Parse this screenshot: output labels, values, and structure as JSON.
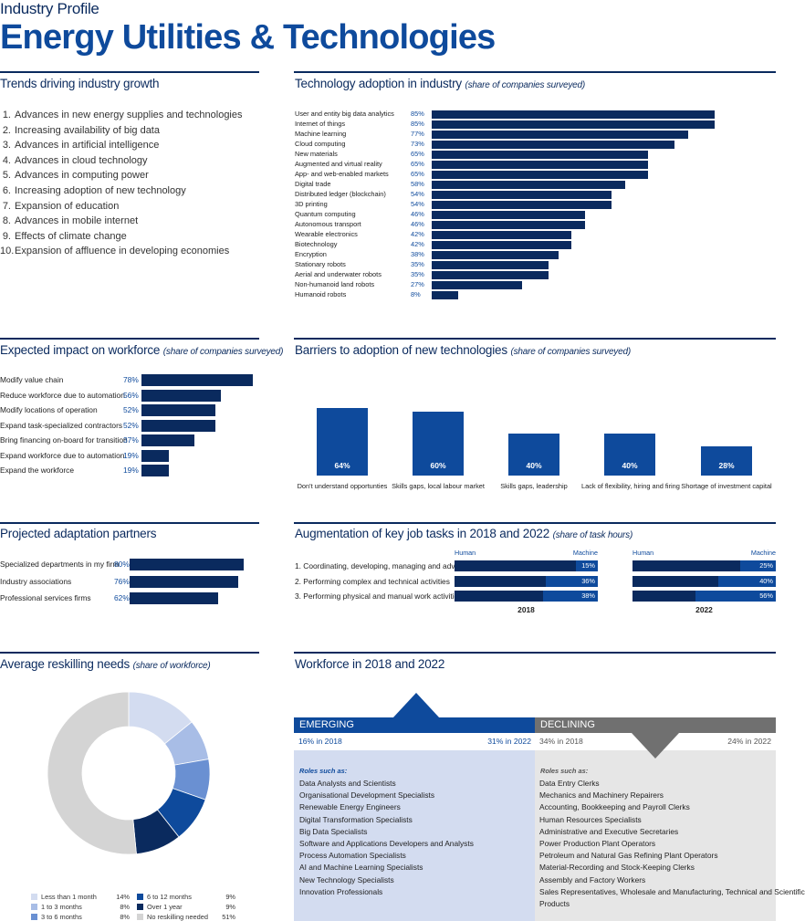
{
  "header": {
    "kicker": "Industry Profile",
    "title": "Energy Utilities & Technologies"
  },
  "trends": {
    "title": "Trends driving industry growth",
    "items": [
      {
        "num": "1.",
        "label": "Advances in new energy supplies and technologies"
      },
      {
        "num": "2.",
        "label": "Increasing availability of big data"
      },
      {
        "num": "3.",
        "label": "Advances in artificial intelligence"
      },
      {
        "num": "4.",
        "label": "Advances in cloud technology"
      },
      {
        "num": "5.",
        "label": "Advances in computing power"
      },
      {
        "num": "6.",
        "label": "Increasing adoption of new technology"
      },
      {
        "num": "7.",
        "label": "Expansion of education"
      },
      {
        "num": "8.",
        "label": "Advances in mobile internet"
      },
      {
        "num": "9.",
        "label": "Effects of climate change"
      },
      {
        "num": "10.",
        "label": "Expansion of affluence in developing economies"
      }
    ]
  },
  "tech_adoption": {
    "title": "Technology adoption in industry",
    "subtitle": "(share of companies surveyed)",
    "items": [
      {
        "label": "User and entity big data analytics",
        "pct": "85%",
        "value": 85
      },
      {
        "label": "Internet of things",
        "pct": "85%",
        "value": 85
      },
      {
        "label": "Machine learning",
        "pct": "77%",
        "value": 77
      },
      {
        "label": "Cloud computing",
        "pct": "73%",
        "value": 73
      },
      {
        "label": "New materials",
        "pct": "65%",
        "value": 65
      },
      {
        "label": "Augmented and virtual reality",
        "pct": "65%",
        "value": 65
      },
      {
        "label": "App- and web-enabled markets",
        "pct": "65%",
        "value": 65
      },
      {
        "label": "Digital trade",
        "pct": "58%",
        "value": 58
      },
      {
        "label": "Distributed ledger (blockchain)",
        "pct": "54%",
        "value": 54
      },
      {
        "label": "3D printing",
        "pct": "54%",
        "value": 54
      },
      {
        "label": "Quantum computing",
        "pct": "46%",
        "value": 46
      },
      {
        "label": "Autonomous transport",
        "pct": "46%",
        "value": 46
      },
      {
        "label": "Wearable electronics",
        "pct": "42%",
        "value": 42
      },
      {
        "label": "Biotechnology",
        "pct": "42%",
        "value": 42
      },
      {
        "label": "Encryption",
        "pct": "38%",
        "value": 38
      },
      {
        "label": "Stationary robots",
        "pct": "35%",
        "value": 35
      },
      {
        "label": "Aerial and underwater robots",
        "pct": "35%",
        "value": 35
      },
      {
        "label": "Non-humanoid land robots",
        "pct": "27%",
        "value": 27
      },
      {
        "label": "Humanoid robots",
        "pct": "8%",
        "value": 8
      }
    ]
  },
  "workforce_impact": {
    "title": "Expected impact on workforce",
    "subtitle": "(share of companies surveyed)",
    "items": [
      {
        "label": "Modify value chain",
        "pct": "78%",
        "value": 78
      },
      {
        "label": "Reduce workforce due to automation",
        "pct": "56%",
        "value": 56
      },
      {
        "label": "Modify locations of operation",
        "pct": "52%",
        "value": 52
      },
      {
        "label": "Expand task-specialized contractors",
        "pct": "52%",
        "value": 52
      },
      {
        "label": "Bring financing on-board for transition",
        "pct": "37%",
        "value": 37
      },
      {
        "label": "Expand workforce due to automation",
        "pct": "19%",
        "value": 19
      },
      {
        "label": "Expand the workforce",
        "pct": "19%",
        "value": 19
      }
    ]
  },
  "barriers": {
    "title": "Barriers to adoption of new technologies",
    "subtitle": "(share of companies surveyed)",
    "items": [
      {
        "label": "Don't understand opportunties",
        "pct": "64%",
        "value": 64
      },
      {
        "label": "Skills gaps, local labour market",
        "pct": "60%",
        "value": 60
      },
      {
        "label": "Skills gaps, leadership",
        "pct": "40%",
        "value": 40
      },
      {
        "label": "Lack of flexibility, hiring and firing",
        "pct": "40%",
        "value": 40
      },
      {
        "label": "Shortage of investment capital",
        "pct": "28%",
        "value": 28
      }
    ]
  },
  "partners": {
    "title": "Projected adaptation partners",
    "items": [
      {
        "label": "Specialized departments in my firm",
        "pct": "80%",
        "value": 80
      },
      {
        "label": "Industry associations",
        "pct": "76%",
        "value": 76
      },
      {
        "label": "Professional services firms",
        "pct": "62%",
        "value": 62
      }
    ]
  },
  "augmentation": {
    "title": "Augmentation of key job tasks in 2018 and 2022",
    "subtitle": "(share of task hours)",
    "human_label": "Human",
    "machine_label": "Machine",
    "tasks": [
      "1.  Coordinating, developing, managing and advising",
      "2.  Performing complex and technical activities",
      "3.  Performing physical and manual work activities"
    ],
    "years": [
      {
        "year": "2018",
        "machine": [
          {
            "pct": "15%",
            "value": 15
          },
          {
            "pct": "36%",
            "value": 36
          },
          {
            "pct": "38%",
            "value": 38
          }
        ]
      },
      {
        "year": "2022",
        "machine": [
          {
            "pct": "25%",
            "value": 25
          },
          {
            "pct": "40%",
            "value": 40
          },
          {
            "pct": "56%",
            "value": 56
          }
        ]
      }
    ]
  },
  "reskilling": {
    "title": "Average reskilling needs",
    "subtitle": "(share of workforce)",
    "segments": [
      {
        "label": "Less than 1 month",
        "pct": "14%",
        "value": 14,
        "color": "#d3dcf0"
      },
      {
        "label": "1 to 3 months",
        "pct": "8%",
        "value": 8,
        "color": "#a8bde6"
      },
      {
        "label": "3 to 6 months",
        "pct": "8%",
        "value": 8,
        "color": "#6a90d2"
      },
      {
        "label": "6 to 12 months",
        "pct": "9%",
        "value": 9,
        "color": "#0e4a9c"
      },
      {
        "label": "Over 1 year",
        "pct": "9%",
        "value": 9,
        "color": "#0a2a5e"
      },
      {
        "label": "No reskilling needed",
        "pct": "51%",
        "value": 51,
        "color": "#d4d4d4"
      }
    ]
  },
  "workforce": {
    "title": "Workforce in 2018 and 2022",
    "emerging": {
      "label": "EMERGING",
      "share_2018": "16% in 2018",
      "share_2022": "31% in 2022",
      "roles_title": "Roles such as:",
      "roles": [
        "Data Analysts and Scientists",
        "Organisational Development Specialists",
        "Renewable Energy Engineers",
        "Digital Transformation Specialists",
        "Big Data Specialists",
        "Software and Applications Developers and Analysts",
        "Process Automation Specialists",
        "AI and Machine Learning Specialists",
        "New Technology Specialists",
        "Innovation Professionals"
      ]
    },
    "declining": {
      "label": "DECLINING",
      "share_2018": "34% in 2018",
      "share_2022": "24% in 2022",
      "roles_title": "Roles such as:",
      "roles": [
        "Data Entry Clerks",
        "Mechanics and Machinery Repairers",
        "Accounting,  Bookkeeping and Payroll Clerks",
        "Human Resources Specialists",
        "Administrative and Executive Secretaries",
        "Power Production Plant Operators",
        "Petroleum and Natural Gas Refining Plant Operators",
        "Material-Recording and Stock-Keeping Clerks",
        "Assembly and Factory Workers",
        "Sales Representatives, Wholesale and Manufacturing, Technical and Scientific",
        "Products"
      ]
    }
  },
  "colors": {
    "navy": "#0a2a5e",
    "blue": "#0e4a9c",
    "emerging_bg": "#d3dcf0",
    "declining_bg": "#e6e6e6",
    "declining_head": "#707070"
  }
}
